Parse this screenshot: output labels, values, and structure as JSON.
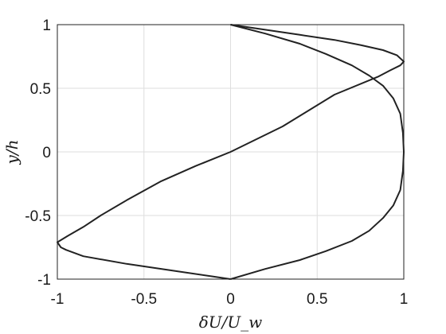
{
  "chart_data": {
    "type": "line",
    "title": "",
    "xlabel": "δU/U_w",
    "ylabel": "y/h",
    "xlim": [
      -1,
      1
    ],
    "ylim": [
      -1,
      1
    ],
    "grid": true,
    "x_ticks": [
      -1,
      -0.5,
      0,
      0.5,
      1
    ],
    "x_tick_labels": [
      "-1",
      "-0.5",
      "0",
      "0.5",
      "1"
    ],
    "y_ticks": [
      -1,
      -0.5,
      0,
      0.5,
      1
    ],
    "y_tick_labels": [
      "-1",
      "-0.5",
      "0",
      "0.5",
      "1"
    ],
    "series": [
      {
        "points": [
          [
            0,
            1
          ],
          [
            0.2,
            0.96
          ],
          [
            0.4,
            0.92
          ],
          [
            0.6,
            0.88
          ],
          [
            0.75,
            0.84
          ],
          [
            0.88,
            0.8
          ],
          [
            0.96,
            0.76
          ],
          [
            1.0,
            0.71
          ],
          [
            0.98,
            0.68
          ],
          [
            0.92,
            0.64
          ],
          [
            0.85,
            0.59
          ],
          [
            0.6,
            0.45
          ],
          [
            0.3,
            0.2
          ],
          [
            0,
            0
          ],
          [
            -0.2,
            -0.11
          ],
          [
            -0.4,
            -0.23
          ],
          [
            -0.6,
            -0.38
          ],
          [
            -0.75,
            -0.5
          ],
          [
            -0.85,
            -0.59
          ],
          [
            -0.94,
            -0.66
          ],
          [
            -1.0,
            -0.71
          ],
          [
            -0.98,
            -0.75
          ],
          [
            -0.95,
            -0.77
          ],
          [
            -0.85,
            -0.82
          ],
          [
            -0.6,
            -0.88
          ],
          [
            -0.3,
            -0.94
          ],
          [
            -0.1,
            -0.98
          ],
          [
            0,
            -1
          ]
        ]
      },
      {
        "points": [
          [
            0,
            -1
          ],
          [
            0.2,
            -0.92
          ],
          [
            0.4,
            -0.85
          ],
          [
            0.55,
            -0.78
          ],
          [
            0.7,
            -0.7
          ],
          [
            0.8,
            -0.62
          ],
          [
            0.88,
            -0.52
          ],
          [
            0.94,
            -0.42
          ],
          [
            0.98,
            -0.3
          ],
          [
            0.995,
            -0.15
          ],
          [
            1.0,
            0
          ],
          [
            0.995,
            0.15
          ],
          [
            0.98,
            0.3
          ],
          [
            0.94,
            0.42
          ],
          [
            0.88,
            0.52
          ],
          [
            0.8,
            0.6
          ],
          [
            0.7,
            0.68
          ],
          [
            0.55,
            0.77
          ],
          [
            0.4,
            0.85
          ],
          [
            0.2,
            0.93
          ],
          [
            0,
            1
          ]
        ]
      }
    ]
  }
}
